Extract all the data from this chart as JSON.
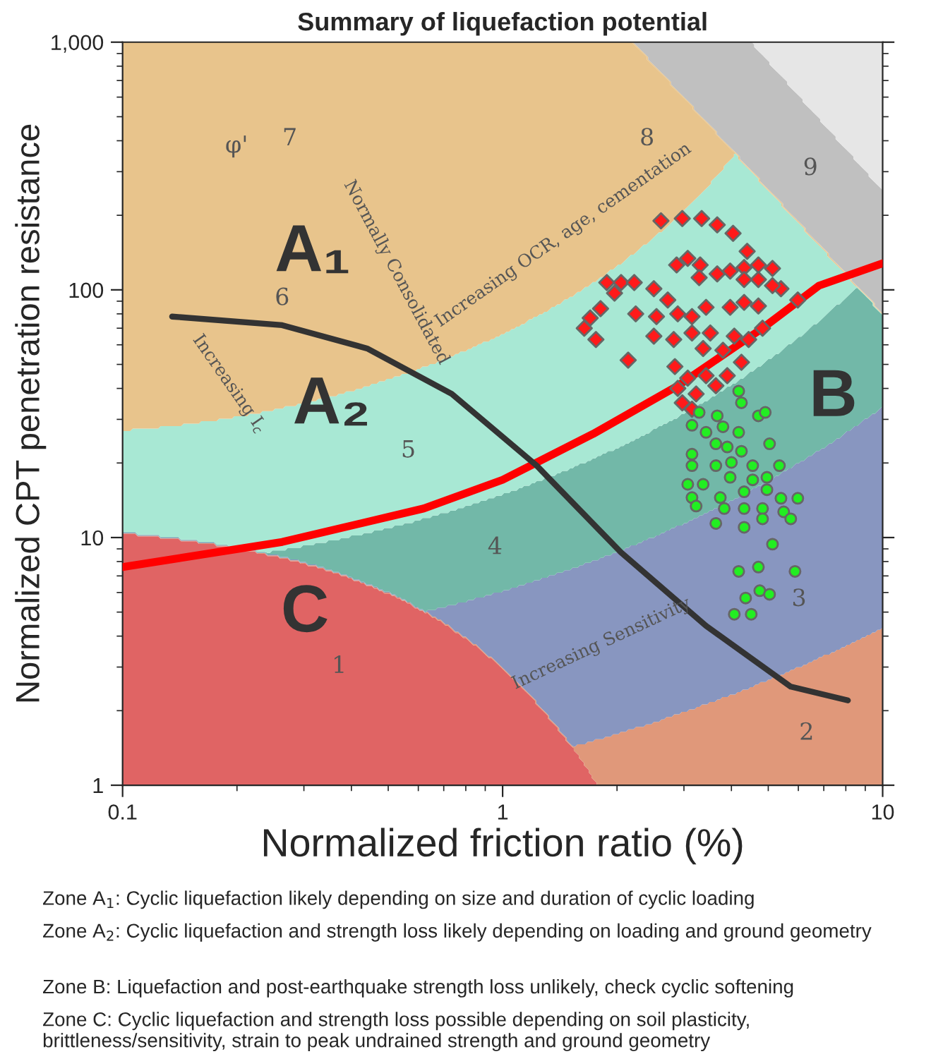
{
  "chart_data": {
    "type": "scatter",
    "title": "Summary of liquefaction potential",
    "xlabel": "Normalized friction ratio (%)",
    "ylabel": "Normalized CPT penetration resistance",
    "log": "xy",
    "xlim": [
      0.1,
      10
    ],
    "ylim": [
      1,
      1000
    ],
    "xticks": [
      0.1,
      1,
      10
    ],
    "yticks": [
      1,
      10,
      100,
      {
        "value": 1000,
        "label": "1,000"
      }
    ],
    "grid": false,
    "series": [
      {
        "color": "#ff1a1a",
        "marker": "diamond",
        "x": [
          2.61,
          2.97,
          3.34,
          3.67,
          4.04,
          4.4,
          3.07,
          3.31,
          2.87,
          3.29,
          3.67,
          3.97,
          4.32,
          4.71,
          5.13,
          1.88,
          2.05,
          2.22,
          2.5,
          2.72,
          1.81,
          1.97,
          1.7,
          1.64,
          1.76,
          2.24,
          2.54,
          2.89,
          3.15,
          3.43,
          3.97,
          4.32,
          4.71,
          5.4,
          5.98,
          5.13,
          4.71,
          4.32,
          2.5,
          2.82,
          3.15,
          3.52,
          4.07,
          4.44,
          4.83,
          3.8,
          3.37,
          4.25,
          2.14,
          2.84,
          3.07,
          3.43,
          3.9,
          2.89,
          3.23,
          3.64,
          2.97,
          3.15
        ],
        "values": [
          190,
          194,
          194,
          183,
          169,
          143,
          134,
          126,
          126,
          112,
          116,
          119,
          123,
          126,
          122,
          107,
          107,
          107,
          101,
          91,
          84,
          97,
          77,
          70,
          63,
          80,
          78,
          80,
          78,
          85,
          85,
          89,
          86,
          101,
          91,
          104,
          110,
          110,
          65,
          63,
          67,
          67,
          65,
          63,
          70,
          57,
          58,
          51,
          52,
          49,
          44,
          45,
          45,
          40,
          38,
          41,
          35,
          33
        ]
      },
      {
        "color": "#22ee22",
        "marker": "circle",
        "x": [
          4.18,
          4.25,
          4.71,
          4.91,
          3.29,
          3.67,
          3.15,
          3.43,
          3.8,
          4.18,
          3.15,
          3.64,
          3.9,
          4.25,
          5.04,
          3.15,
          3.64,
          4.0,
          4.55,
          5.35,
          3.07,
          3.37,
          3.97,
          4.55,
          4.96,
          3.15,
          3.74,
          4.32,
          4.96,
          3.23,
          3.83,
          4.32,
          4.83,
          5.4,
          5.98,
          5.49,
          3.64,
          4.32,
          4.83,
          5.73,
          5.13,
          4.18,
          4.71,
          5.88,
          4.75,
          5.04,
          4.36,
          4.07,
          4.51
        ],
        "values": [
          39,
          35,
          31,
          32,
          32,
          31,
          28.4,
          26.6,
          28,
          26.6,
          21.7,
          23.9,
          23.2,
          22.3,
          23.9,
          19.5,
          19.5,
          20.1,
          19.5,
          19.5,
          16.4,
          16.4,
          17.5,
          17.1,
          17.5,
          14.5,
          14.5,
          15.3,
          15.6,
          13.4,
          13.1,
          13.1,
          13.1,
          14.4,
          14.4,
          12.7,
          11.4,
          11.0,
          11.9,
          11.9,
          9.4,
          7.3,
          7.6,
          7.3,
          6.1,
          5.9,
          5.7,
          4.9,
          4.9
        ]
      },
      {
        "type": "line",
        "color": "#ff0000",
        "marker": "none",
        "x": [
          0.1,
          0.263,
          0.62,
          1,
          1.73,
          2.89,
          4.83,
          6.8,
          10
        ],
        "values": [
          7.6,
          9.6,
          13.1,
          17.1,
          26.2,
          41,
          70,
          104,
          128
        ]
      },
      {
        "type": "line",
        "color": "#333333",
        "marker": "none",
        "x": [
          0.135,
          0.263,
          0.44,
          0.735,
          1.23,
          2.05,
          3.43,
          5.73,
          8.1
        ],
        "values": [
          78,
          72,
          58,
          38,
          19.5,
          8.7,
          4.4,
          2.5,
          2.2
        ]
      }
    ],
    "annotations": [
      "7",
      "8",
      "9",
      "6",
      "5",
      "4",
      "3",
      "2",
      "1",
      "A₁",
      "A₂",
      "B",
      "C",
      "φ'",
      "Normally Consolidated",
      "Increasing OCR, age, cementation",
      "Increasing I$_{c}$",
      "Increasing Sensitivity",
      "Zone A$_{1}$: Cyclic liquefaction likely depending on size and duration of cyclic loading",
      "Zone A$_{2}$: Cyclic liquefaction and strength loss likely depending on loading and ground geometry",
      "Zone B: Liquefaction and post-earthquake strength loss unlikely, check cyclic softening",
      "Zone C: Cyclic liquefaction and strength loss possible depending on soil plasticity, brittleness/sensitivity, strain to peak undrained strength and ground geometry"
    ]
  }
}
